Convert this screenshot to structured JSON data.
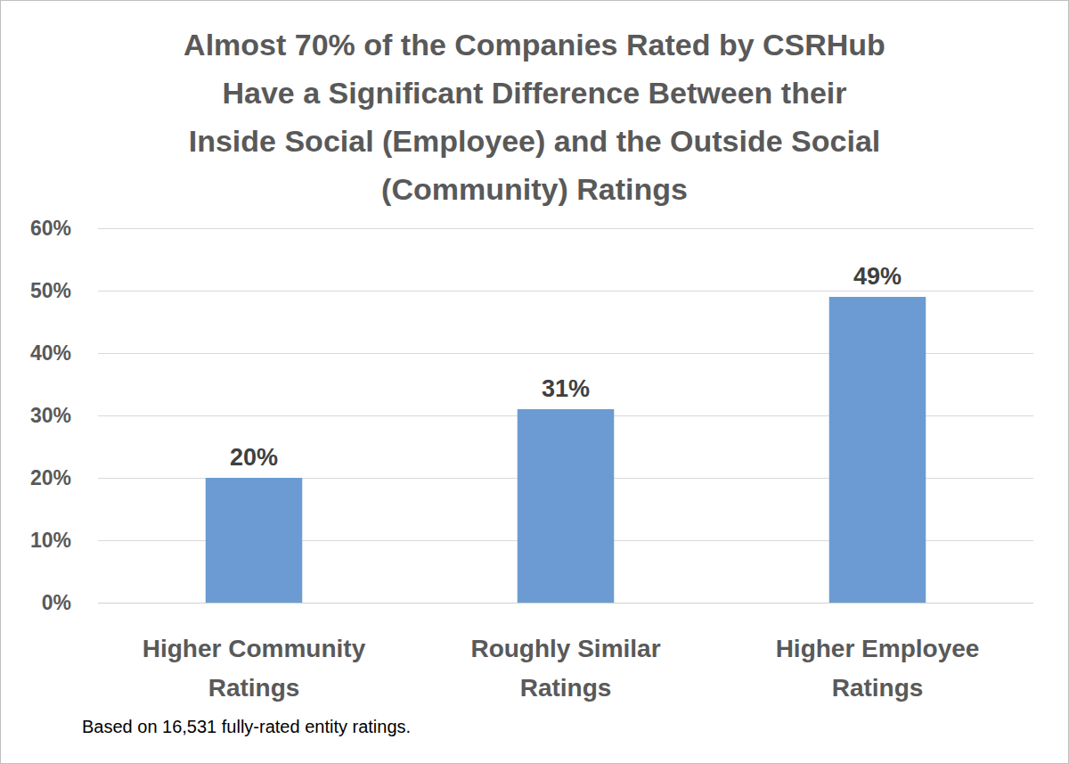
{
  "chart_data": {
    "type": "bar",
    "title": "Almost 70% of the Companies Rated by CSRHub Have a Significant Difference Between their Inside Social (Employee) and the Outside Social (Community) Ratings",
    "categories": [
      "Higher Community Ratings",
      "Roughly Similar Ratings",
      "Higher Employee Ratings"
    ],
    "values": [
      20,
      31,
      49
    ],
    "value_labels": [
      "20%",
      "31%",
      "49%"
    ],
    "data_labels": true,
    "color": "#6b9bd2",
    "ylim": [
      0,
      60
    ],
    "yticks": [
      {
        "value": 0,
        "label": "0%"
      },
      {
        "value": 10,
        "label": "10%"
      },
      {
        "value": 20,
        "label": "20%"
      },
      {
        "value": 30,
        "label": "30%"
      },
      {
        "value": 40,
        "label": "40%"
      },
      {
        "value": 50,
        "label": "50%"
      },
      {
        "value": 60,
        "label": "60%"
      }
    ],
    "grid": true,
    "annotations": [
      "Based on 16,531 fully-rated entity ratings."
    ]
  }
}
